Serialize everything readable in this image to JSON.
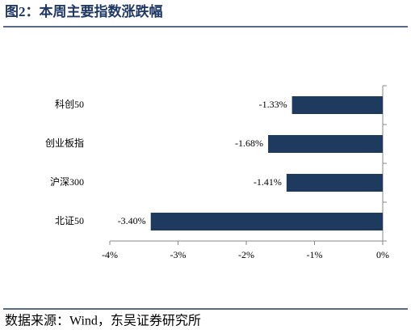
{
  "chart_data": {
    "type": "bar",
    "orientation": "horizontal",
    "title": "图2：本周主要指数涨跌幅",
    "categories": [
      "科创50",
      "创业板指",
      "沪深300",
      "北证50"
    ],
    "values": [
      -1.33,
      -1.68,
      -1.41,
      -3.4
    ],
    "value_labels": [
      "-1.33%",
      "-1.68%",
      "-1.41%",
      "-3.40%"
    ],
    "color": "#1f3a5f",
    "xlim": [
      -4,
      0
    ],
    "xticks": [
      {
        "value": -4,
        "label": "-4%"
      },
      {
        "value": -3,
        "label": "-3%"
      },
      {
        "value": -2,
        "label": "-2%"
      },
      {
        "value": -1,
        "label": "-1%"
      },
      {
        "value": 0,
        "label": "0%"
      }
    ],
    "source": "数据来源：Wind，东吴证券研究所"
  }
}
